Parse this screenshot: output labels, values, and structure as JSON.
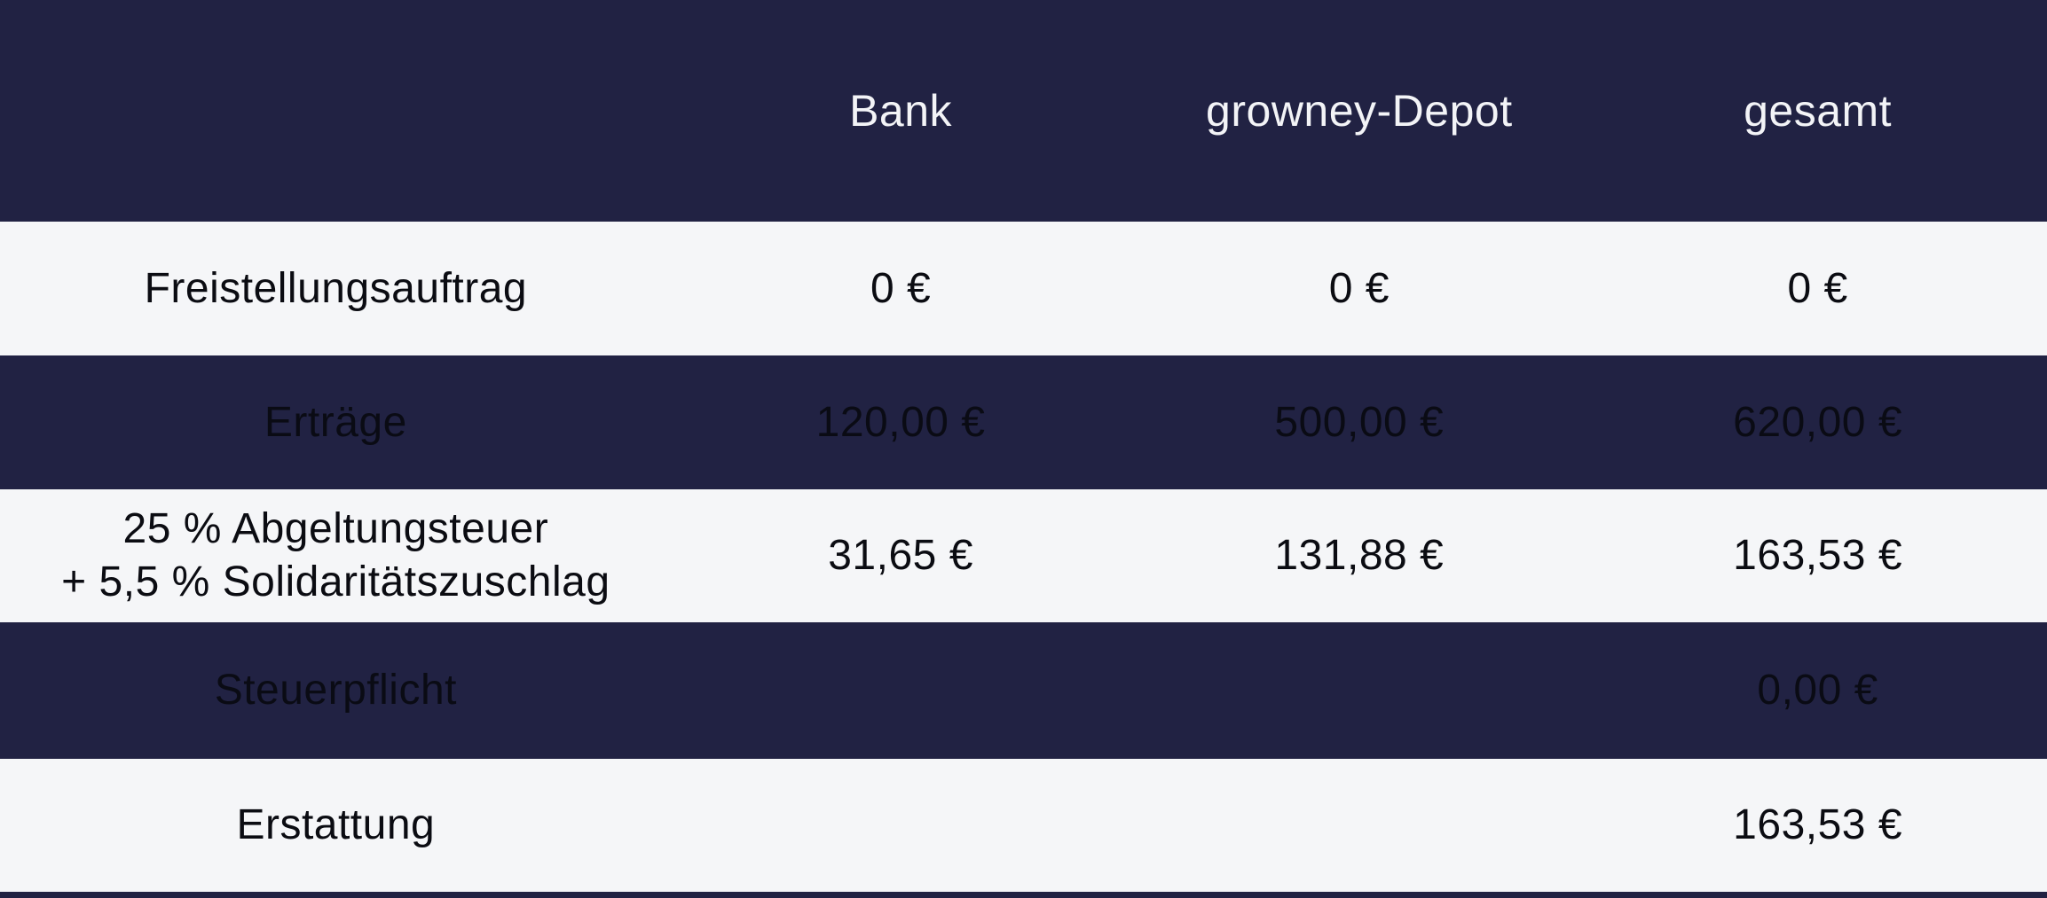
{
  "table": {
    "header": {
      "col0": "",
      "col1": "Bank",
      "col2": "growney-Depot",
      "col3": "gesamt"
    },
    "rows": [
      {
        "label": "Freistellungsauftrag",
        "bank": "0 €",
        "growney_depot": "0 €",
        "gesamt": "0 €"
      },
      {
        "label": "Erträge",
        "bank": "120,00 €",
        "growney_depot": "500,00 €",
        "gesamt": "620,00 €"
      },
      {
        "label": "25 % Abgeltungsteuer\n+ 5,5 % Solidaritätszuschlag",
        "bank": "31,65 €",
        "growney_depot": "131,88 €",
        "gesamt": "163,53 €"
      },
      {
        "label": "Steuerpflicht",
        "bank": "",
        "growney_depot": "",
        "gesamt": "0,00 €"
      },
      {
        "label": "Erstattung",
        "bank": "",
        "growney_depot": "",
        "gesamt": "163,53 €"
      }
    ]
  },
  "colors": {
    "header_bg": "#212243",
    "dark_row_bg": "#212243",
    "light_row_bg": "#f5f6f8",
    "header_text": "#f3f4f7",
    "dark_row_text": "#0a0b14",
    "light_row_text": "#0b0c12"
  },
  "chart_data": {
    "type": "table",
    "title": "Steuervergleich Bank vs. growney-Depot",
    "columns": [
      "",
      "Bank",
      "growney-Depot",
      "gesamt"
    ],
    "rows": [
      [
        "Freistellungsauftrag",
        "0 €",
        "0 €",
        "0 €"
      ],
      [
        "Erträge",
        "120,00 €",
        "500,00 €",
        "620,00 €"
      ],
      [
        "25 % Abgeltungsteuer + 5,5 % Solidaritätszuschlag",
        "31,65 €",
        "131,88 €",
        "163,53 €"
      ],
      [
        "Steuerpflicht",
        "",
        "",
        "0,00 €"
      ],
      [
        "Erstattung",
        "",
        "",
        "163,53 €"
      ]
    ],
    "values_numeric_eur": {
      "ertraege": [
        120.0,
        500.0,
        620.0
      ],
      "abgeltungsteuer_soli": [
        31.65,
        131.88,
        163.53
      ],
      "freistellungsauftrag": [
        0,
        0,
        0
      ],
      "steuerpflicht_gesamt": 0.0,
      "erstattung_gesamt": 163.53
    }
  }
}
